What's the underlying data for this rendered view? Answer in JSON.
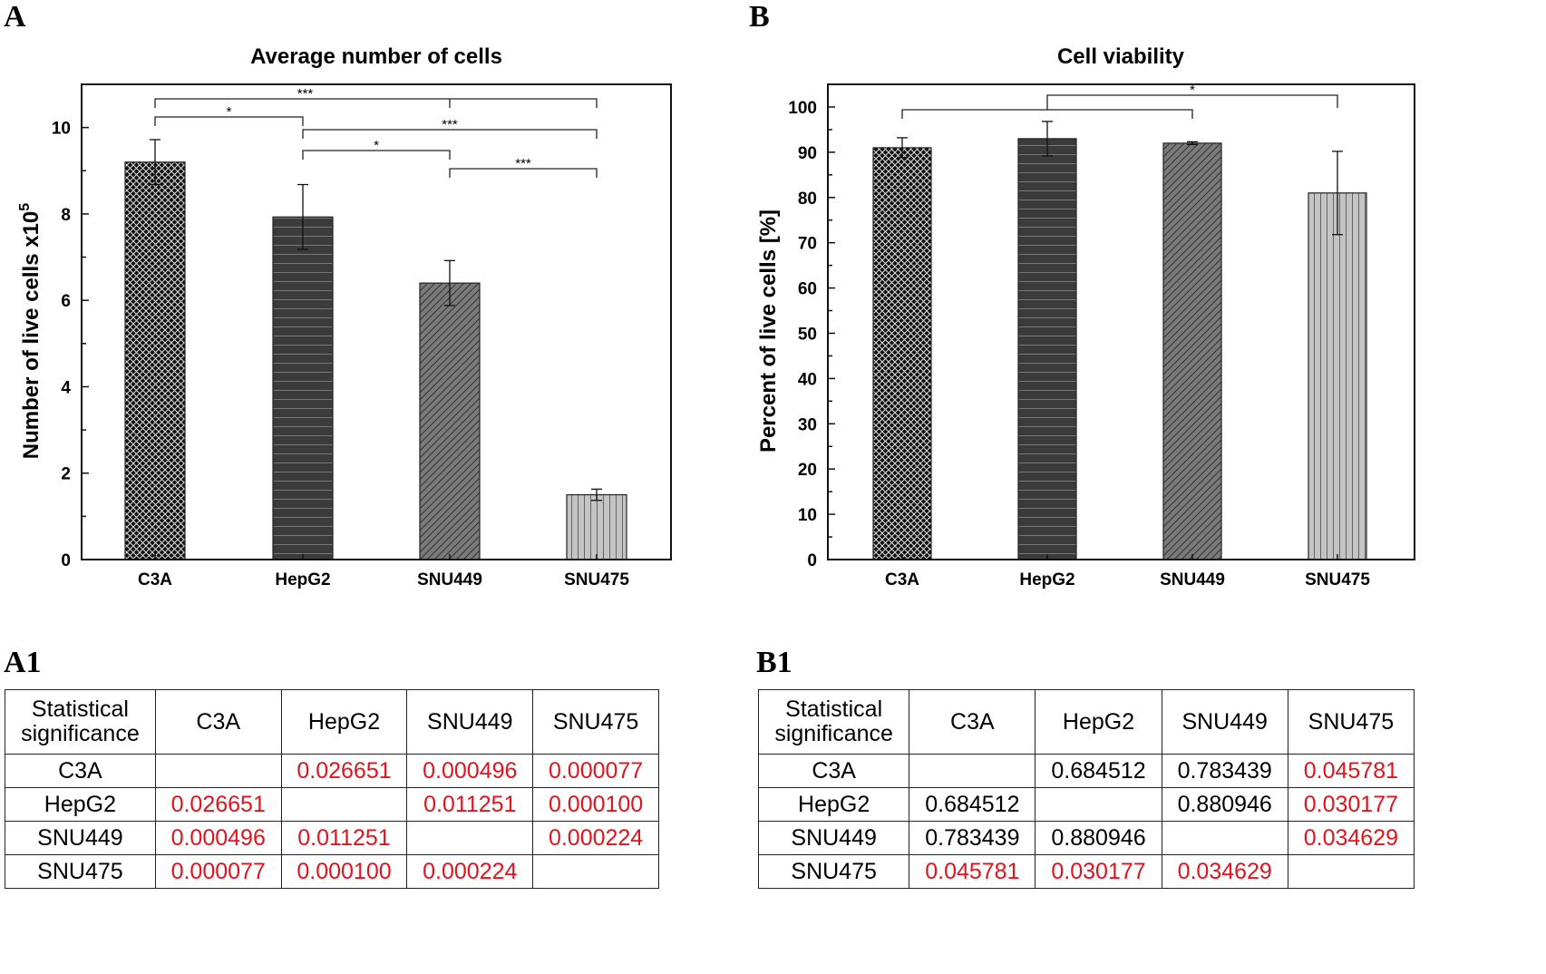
{
  "panels": {
    "a": "A",
    "b": "B",
    "a1": "A1",
    "b1": "B1"
  },
  "colors": {
    "significant": "#e0141c",
    "normal": "#000000",
    "fills": [
      "#222222",
      "#3b3b3b",
      "#7a7a7a",
      "#c4c4c4"
    ]
  },
  "chart_data": [
    {
      "type": "bar",
      "title": "Average number of cells",
      "xlabel": "",
      "ylabel": "Number of live cells x10",
      "ylabel_sup": "5",
      "categories": [
        "C3A",
        "HepG2",
        "SNU449",
        "SNU475"
      ],
      "values": [
        9.2,
        7.93,
        6.4,
        1.5
      ],
      "errors": [
        0.52,
        0.75,
        0.52,
        0.13
      ],
      "patterns": [
        "crosshatch",
        "horizontal",
        "diagonal",
        "vertical"
      ],
      "ylim": [
        0,
        11
      ],
      "yticks": [
        0,
        2,
        4,
        6,
        8,
        10
      ],
      "grid": false,
      "annotations": [
        {
          "from": 0,
          "to": 3,
          "mid": 2,
          "label": "***"
        },
        {
          "from": 0,
          "to": 1,
          "label": "*"
        },
        {
          "from": 1,
          "to": 3,
          "label": "***"
        },
        {
          "from": 1,
          "to": 2,
          "label": "*"
        },
        {
          "from": 2,
          "to": 3,
          "label": "***"
        }
      ]
    },
    {
      "type": "bar",
      "title": "Cell viability",
      "xlabel": "",
      "ylabel": "Percent of live cells [%]",
      "categories": [
        "C3A",
        "HepG2",
        "SNU449",
        "SNU475"
      ],
      "values": [
        91,
        93,
        92,
        81
      ],
      "errors": [
        2.2,
        3.8,
        0.3,
        9.2
      ],
      "patterns": [
        "crosshatch",
        "horizontal",
        "diagonal",
        "vertical"
      ],
      "ylim": [
        0,
        105
      ],
      "yticks": [
        0,
        10,
        20,
        30,
        40,
        50,
        60,
        70,
        80,
        90,
        100
      ],
      "grid": false,
      "annotations": [
        {
          "from": 0,
          "to": 2,
          "label": ""
        },
        {
          "from": 1,
          "to": 3,
          "label": "*"
        }
      ]
    }
  ],
  "tables": [
    {
      "header": [
        "Statistical significance",
        "C3A",
        "HepG2",
        "SNU449",
        "SNU475"
      ],
      "rows": [
        [
          "C3A",
          "",
          "0.026651",
          "0.000496",
          "0.000077"
        ],
        [
          "HepG2",
          "0.026651",
          "",
          "0.011251",
          "0.000100"
        ],
        [
          "SNU449",
          "0.000496",
          "0.011251",
          "",
          "0.000224"
        ],
        [
          "SNU475",
          "0.000077",
          "0.000100",
          "0.000224",
          ""
        ]
      ]
    },
    {
      "header": [
        "Statistical significance",
        "C3A",
        "HepG2",
        "SNU449",
        "SNU475"
      ],
      "rows": [
        [
          "C3A",
          "",
          "0.684512",
          "0.783439",
          "0.045781"
        ],
        [
          "HepG2",
          "0.684512",
          "",
          "0.880946",
          "0.030177"
        ],
        [
          "SNU449",
          "0.783439",
          "0.880946",
          "",
          "0.034629"
        ],
        [
          "SNU475",
          "0.045781",
          "0.030177",
          "0.034629",
          ""
        ]
      ]
    }
  ]
}
